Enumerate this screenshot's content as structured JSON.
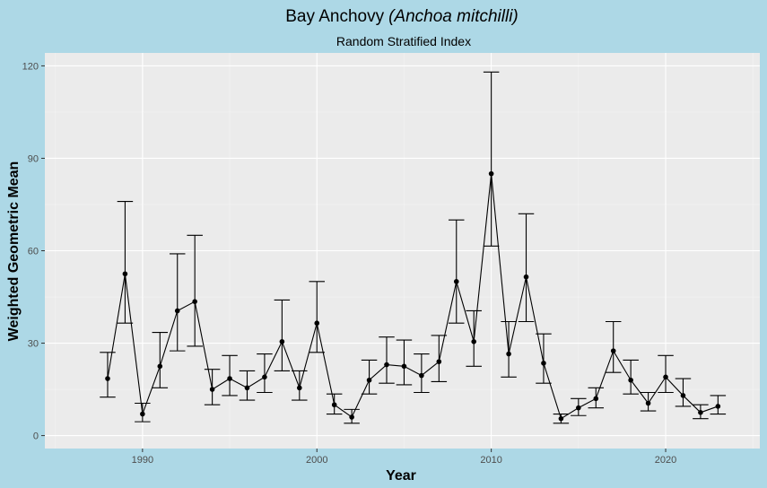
{
  "chart_data": {
    "type": "scatter",
    "title": "Bay Anchovy",
    "title_italic": "(Anchoa mitchilli)",
    "subtitle": "Random Stratified Index",
    "xlabel": "Year",
    "ylabel": "Weighted Geometric Mean",
    "xlim": [
      1984.4,
      2025.4
    ],
    "ylim": [
      -4.2,
      124.2
    ],
    "x_ticks": [
      1990,
      2000,
      2010,
      2020
    ],
    "y_ticks": [
      0,
      30,
      60,
      90,
      120
    ],
    "grid": true,
    "legend": "none",
    "colors": {
      "background": "#add8e6",
      "panel": "#ebebeb",
      "grid_major": "#ffffff",
      "grid_minor": "#f4f4f4",
      "line": "#000000",
      "tick_label": "#4d4d4d"
    },
    "series": [
      {
        "name": "Weighted Geometric Mean",
        "x": [
          1988,
          1989,
          1990,
          1991,
          1992,
          1993,
          1994,
          1995,
          1996,
          1997,
          1998,
          1999,
          2000,
          2001,
          2002,
          2003,
          2004,
          2005,
          2006,
          2007,
          2008,
          2009,
          2010,
          2011,
          2012,
          2013,
          2014,
          2015,
          2016,
          2017,
          2018,
          2019,
          2020,
          2021,
          2022,
          2023
        ],
        "y": [
          18.5,
          52.5,
          7,
          22.5,
          40.5,
          43.5,
          15,
          18.5,
          15.5,
          19,
          30.5,
          15.5,
          36.5,
          10,
          6,
          18,
          23,
          22.5,
          19.5,
          24,
          50,
          30.5,
          85,
          26.5,
          51.5,
          23.5,
          5.5,
          9,
          12,
          27.5,
          18,
          10.5,
          19,
          13,
          7.5,
          9.5
        ],
        "lower": [
          12.5,
          36.5,
          4.5,
          15.5,
          27.5,
          29,
          10,
          13,
          11.5,
          14,
          21,
          11.5,
          27,
          7,
          4,
          13.5,
          17,
          16.5,
          14,
          17.5,
          36.5,
          22.5,
          61.5,
          19,
          37,
          17,
          4,
          6.5,
          9,
          20.5,
          13.5,
          8,
          14,
          9.5,
          5.5,
          7
        ],
        "upper": [
          27,
          76,
          10.5,
          33.5,
          59,
          65,
          21.5,
          26,
          21,
          26.5,
          44,
          21,
          50,
          13.5,
          8.5,
          24.5,
          32,
          31,
          26.5,
          32.5,
          70,
          40.5,
          118,
          37,
          72,
          33,
          7,
          12,
          15.5,
          37,
          24.5,
          14,
          26,
          18.5,
          10,
          13
        ]
      }
    ]
  }
}
